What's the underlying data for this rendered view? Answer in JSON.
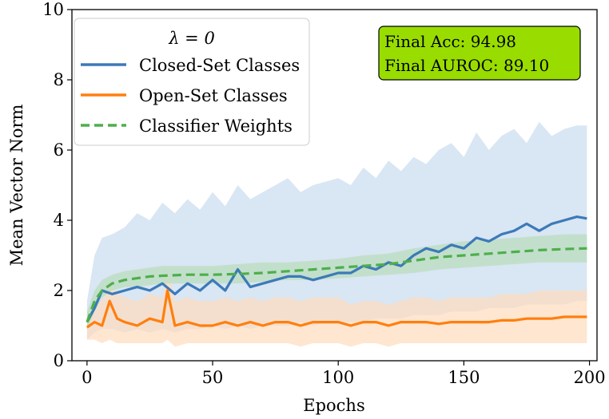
{
  "chart_data": {
    "type": "line",
    "xlabel": "Epochs",
    "ylabel": "Mean Vector Norm",
    "xlim": [
      -6,
      203
    ],
    "ylim": [
      0,
      10
    ],
    "xticks": [
      0,
      50,
      100,
      150,
      200
    ],
    "yticks": [
      0,
      2,
      4,
      6,
      8,
      10
    ],
    "grid": false,
    "legend_title": "λ = 0",
    "legend_position": "top-left",
    "annotation": {
      "lines": [
        "Final Acc: 94.98",
        "Final AUROC: 89.10"
      ],
      "background": "#99dd00",
      "position": "top-right"
    },
    "series": [
      {
        "name": "Closed-Set Classes",
        "color": "#3c7ab8",
        "style": "solid",
        "band_color": "#c9dcee",
        "x": [
          0,
          3,
          6,
          10,
          15,
          20,
          25,
          30,
          35,
          40,
          45,
          50,
          55,
          60,
          65,
          70,
          75,
          80,
          85,
          90,
          95,
          100,
          105,
          110,
          115,
          120,
          125,
          130,
          135,
          140,
          145,
          150,
          155,
          160,
          165,
          170,
          175,
          180,
          185,
          190,
          195,
          199
        ],
        "y": [
          1.1,
          1.5,
          2.0,
          1.9,
          2.0,
          2.1,
          2.0,
          2.2,
          1.9,
          2.2,
          2.0,
          2.3,
          2.0,
          2.6,
          2.1,
          2.2,
          2.3,
          2.4,
          2.4,
          2.3,
          2.4,
          2.5,
          2.5,
          2.7,
          2.6,
          2.8,
          2.7,
          3.0,
          3.2,
          3.1,
          3.3,
          3.2,
          3.5,
          3.4,
          3.6,
          3.7,
          3.9,
          3.7,
          3.9,
          4.0,
          4.1,
          4.05
        ],
        "band_lower": [
          0.6,
          0.8,
          0.9,
          0.9,
          0.8,
          0.9,
          0.8,
          0.9,
          0.8,
          0.9,
          0.9,
          1.0,
          0.9,
          1.0,
          0.9,
          1.0,
          1.0,
          1.0,
          1.1,
          1.0,
          1.1,
          1.1,
          1.1,
          1.1,
          1.2,
          1.2,
          1.2,
          1.3,
          1.3,
          1.3,
          1.4,
          1.4,
          1.4,
          1.5,
          1.5,
          1.5,
          1.6,
          1.6,
          1.6,
          1.6,
          1.7,
          1.7
        ],
        "band_upper": [
          1.7,
          3.0,
          3.5,
          3.6,
          3.8,
          4.2,
          4.0,
          4.5,
          4.2,
          4.6,
          4.3,
          4.8,
          4.4,
          5.0,
          4.6,
          4.8,
          5.0,
          5.2,
          4.8,
          5.0,
          5.1,
          5.2,
          5.0,
          5.5,
          5.2,
          5.7,
          5.4,
          5.8,
          5.6,
          6.0,
          6.2,
          5.8,
          6.5,
          6.0,
          6.4,
          6.6,
          6.2,
          6.8,
          6.4,
          6.6,
          6.7,
          6.7
        ]
      },
      {
        "name": "Open-Set Classes",
        "color": "#ff7f0e",
        "style": "solid",
        "band_color": "#ffdcbd",
        "x": [
          0,
          3,
          6,
          9,
          12,
          15,
          20,
          25,
          30,
          32,
          35,
          40,
          45,
          50,
          55,
          60,
          65,
          70,
          75,
          80,
          85,
          90,
          95,
          100,
          105,
          110,
          115,
          120,
          125,
          130,
          135,
          140,
          145,
          150,
          155,
          160,
          165,
          170,
          175,
          180,
          185,
          190,
          195,
          199
        ],
        "y": [
          0.95,
          1.1,
          1.0,
          1.7,
          1.2,
          1.1,
          1.0,
          1.2,
          1.1,
          2.0,
          1.0,
          1.1,
          1.0,
          1.0,
          1.1,
          1.0,
          1.1,
          1.0,
          1.1,
          1.1,
          1.0,
          1.1,
          1.1,
          1.1,
          1.0,
          1.1,
          1.1,
          1.0,
          1.1,
          1.1,
          1.1,
          1.05,
          1.1,
          1.1,
          1.1,
          1.1,
          1.15,
          1.15,
          1.2,
          1.2,
          1.2,
          1.25,
          1.25,
          1.25
        ],
        "band_lower": [
          0.6,
          0.6,
          0.5,
          0.6,
          0.5,
          0.5,
          0.5,
          0.5,
          0.5,
          0.6,
          0.4,
          0.5,
          0.5,
          0.5,
          0.5,
          0.5,
          0.5,
          0.5,
          0.5,
          0.5,
          0.4,
          0.5,
          0.5,
          0.5,
          0.4,
          0.5,
          0.5,
          0.4,
          0.5,
          0.5,
          0.5,
          0.5,
          0.5,
          0.5,
          0.5,
          0.5,
          0.5,
          0.5,
          0.5,
          0.5,
          0.5,
          0.5,
          0.5,
          0.5
        ],
        "band_upper": [
          1.3,
          1.7,
          1.7,
          2.2,
          1.9,
          1.8,
          1.7,
          1.9,
          1.8,
          2.6,
          1.7,
          1.8,
          1.7,
          1.7,
          1.8,
          1.7,
          1.8,
          1.7,
          1.8,
          1.8,
          1.7,
          1.8,
          1.8,
          1.8,
          1.6,
          1.7,
          1.7,
          1.6,
          1.7,
          1.8,
          1.8,
          1.7,
          1.8,
          1.8,
          1.8,
          1.8,
          1.9,
          1.9,
          1.9,
          2.0,
          2.0,
          2.0,
          2.0,
          2.0
        ]
      },
      {
        "name": "Classifier Weights",
        "color": "#4daf4a",
        "style": "dashed",
        "band_color": "#b8dcbb",
        "x": [
          0,
          3,
          6,
          10,
          15,
          20,
          25,
          30,
          40,
          50,
          60,
          70,
          80,
          90,
          100,
          110,
          120,
          130,
          140,
          150,
          160,
          170,
          180,
          190,
          199
        ],
        "y": [
          1.1,
          1.7,
          2.0,
          2.2,
          2.3,
          2.35,
          2.4,
          2.42,
          2.45,
          2.45,
          2.47,
          2.5,
          2.55,
          2.6,
          2.65,
          2.7,
          2.75,
          2.85,
          2.95,
          3.0,
          3.05,
          3.1,
          3.15,
          3.18,
          3.2
        ],
        "band_lower": [
          0.9,
          1.4,
          1.8,
          2.0,
          2.1,
          2.1,
          2.15,
          2.2,
          2.2,
          2.2,
          2.2,
          2.25,
          2.3,
          2.3,
          2.35,
          2.4,
          2.45,
          2.5,
          2.6,
          2.65,
          2.7,
          2.75,
          2.8,
          2.8,
          2.8
        ],
        "band_upper": [
          1.4,
          2.0,
          2.3,
          2.45,
          2.55,
          2.6,
          2.65,
          2.7,
          2.7,
          2.7,
          2.75,
          2.8,
          2.8,
          2.85,
          2.9,
          3.0,
          3.05,
          3.2,
          3.3,
          3.4,
          3.45,
          3.5,
          3.55,
          3.6,
          3.6
        ]
      }
    ]
  }
}
